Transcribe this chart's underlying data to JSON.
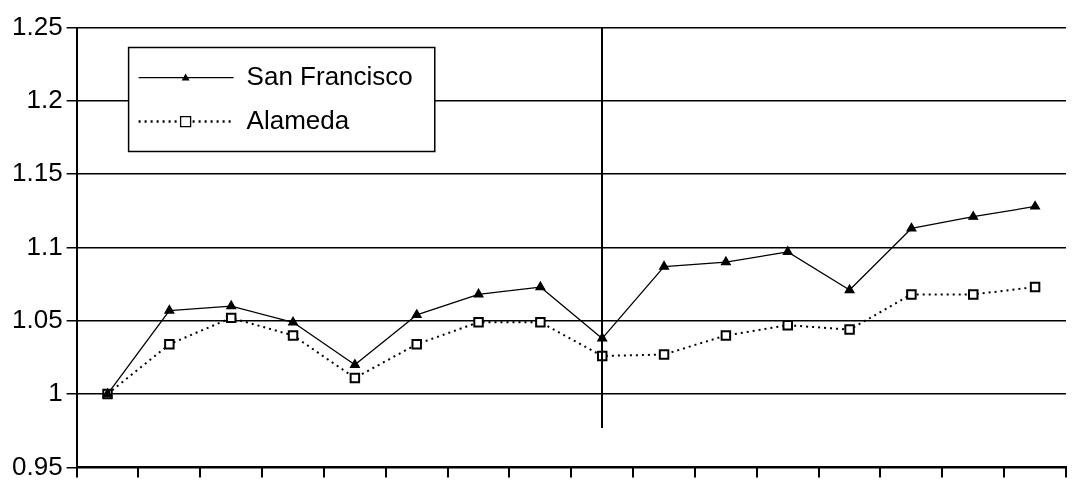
{
  "chart_data": {
    "type": "line",
    "categories": [
      null,
      null,
      null,
      null,
      null,
      null,
      null,
      null,
      null,
      null,
      null,
      null,
      null,
      null,
      null,
      null
    ],
    "ylim": [
      0.95,
      1.25
    ],
    "yticks": [
      0.95,
      1,
      1.05,
      1.1,
      1.15,
      1.2,
      1.25
    ],
    "tick_labels": "y",
    "grid": "y",
    "legend": "top left",
    "series": [
      {
        "name": "San Francisco",
        "color": "#000000",
        "marker": "triangle",
        "line_style": "solid",
        "values": [
          1.0,
          1.057,
          1.06,
          1.049,
          1.02,
          1.054,
          1.068,
          1.073,
          1.038,
          1.087,
          1.09,
          1.097,
          1.071,
          1.113,
          1.121,
          1.128
        ]
      },
      {
        "name": "Alameda",
        "color": "#000000",
        "marker": "square",
        "line_style": "dotted",
        "values": [
          1.0,
          1.034,
          1.052,
          1.04,
          1.011,
          1.034,
          1.049,
          1.049,
          1.026,
          1.027,
          1.04,
          1.047,
          1.044,
          1.068,
          1.068,
          1.073
        ]
      }
    ]
  }
}
